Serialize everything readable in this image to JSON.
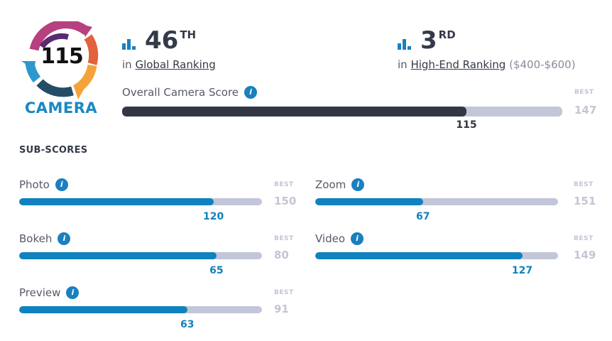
{
  "badge": {
    "score": "115",
    "label": "CAMERA"
  },
  "rankings": [
    {
      "icon": "bar-chart-icon",
      "number": "46",
      "suffix": "TH",
      "prefix": "in",
      "link": "Global Ranking",
      "extra": ""
    },
    {
      "icon": "bar-chart-icon",
      "number": "3",
      "suffix": "RD",
      "prefix": "in",
      "link": "High-End Ranking",
      "extra": "($400-$600)"
    }
  ],
  "overall": {
    "label": "Overall Camera Score",
    "value": 115,
    "value_text": "115",
    "best_label": "BEST",
    "best": 147,
    "best_text": "147",
    "color": "#323743"
  },
  "subscores_title": "SUB-SCORES",
  "accent": "#0f82bf",
  "subscores": [
    {
      "label": "Photo",
      "value": 120,
      "value_text": "120",
      "best_label": "BEST",
      "best": 150,
      "best_text": "150"
    },
    {
      "label": "Zoom",
      "value": 67,
      "value_text": "67",
      "best_label": "BEST",
      "best": 151,
      "best_text": "151"
    },
    {
      "label": "Bokeh",
      "value": 65,
      "value_text": "65",
      "best_label": "BEST",
      "best": 80,
      "best_text": "80"
    },
    {
      "label": "Video",
      "value": 127,
      "value_text": "127",
      "best_label": "BEST",
      "best": 149,
      "best_text": "149"
    },
    {
      "label": "Preview",
      "value": 63,
      "value_text": "63",
      "best_label": "BEST",
      "best": 91,
      "best_text": "91"
    }
  ],
  "info_glyph": "i"
}
